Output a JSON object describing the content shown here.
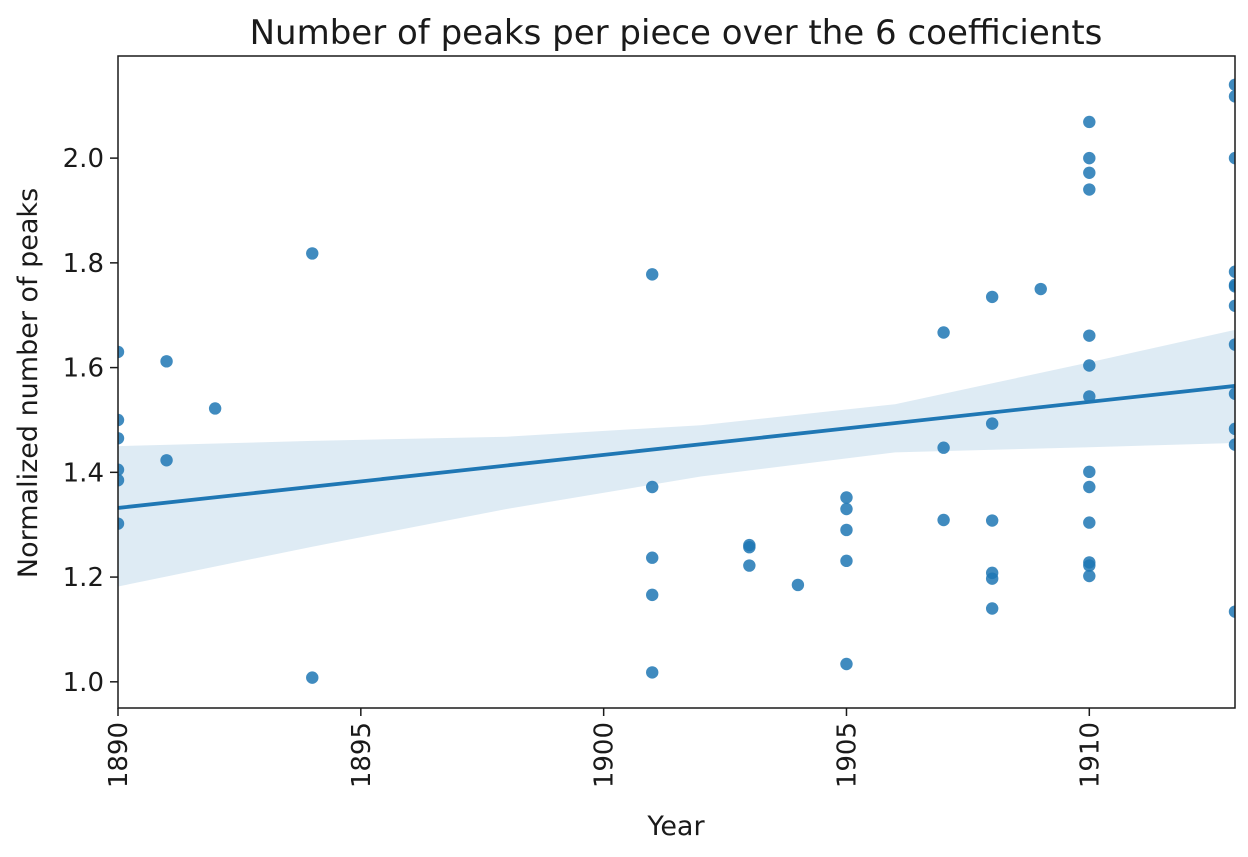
{
  "chart_data": {
    "type": "scatter",
    "title": "Number of peaks per piece over the 6 coefficients",
    "xlabel": "Year",
    "ylabel": "Normalized number of peaks",
    "xlim": [
      1890,
      1913
    ],
    "ylim": [
      0.95,
      2.195
    ],
    "x_ticks": [
      "1890",
      "1895",
      "1900",
      "1905",
      "1910"
    ],
    "y_ticks": [
      "1.0",
      "1.2",
      "1.4",
      "1.6",
      "1.8",
      "2.0"
    ],
    "grid": false,
    "colors": {
      "points": "#1f77b4",
      "line": "#1f77b4",
      "band": "#1f77b4"
    },
    "points": [
      {
        "x": 1890,
        "y": 1.63
      },
      {
        "x": 1890,
        "y": 1.5
      },
      {
        "x": 1890,
        "y": 1.465
      },
      {
        "x": 1890,
        "y": 1.405
      },
      {
        "x": 1890,
        "y": 1.385
      },
      {
        "x": 1890,
        "y": 1.302
      },
      {
        "x": 1891,
        "y": 1.612
      },
      {
        "x": 1891,
        "y": 1.423
      },
      {
        "x": 1892,
        "y": 1.522
      },
      {
        "x": 1894,
        "y": 1.818
      },
      {
        "x": 1894,
        "y": 1.008
      },
      {
        "x": 1901,
        "y": 1.778
      },
      {
        "x": 1901,
        "y": 1.372
      },
      {
        "x": 1901,
        "y": 1.237
      },
      {
        "x": 1901,
        "y": 1.166
      },
      {
        "x": 1901,
        "y": 1.018
      },
      {
        "x": 1903,
        "y": 1.261
      },
      {
        "x": 1903,
        "y": 1.257
      },
      {
        "x": 1903,
        "y": 1.222
      },
      {
        "x": 1904,
        "y": 1.185
      },
      {
        "x": 1905,
        "y": 1.352
      },
      {
        "x": 1905,
        "y": 1.33
      },
      {
        "x": 1905,
        "y": 1.29
      },
      {
        "x": 1905,
        "y": 1.231
      },
      {
        "x": 1905,
        "y": 1.034
      },
      {
        "x": 1907,
        "y": 1.667
      },
      {
        "x": 1907,
        "y": 1.447
      },
      {
        "x": 1907,
        "y": 1.309
      },
      {
        "x": 1908,
        "y": 1.735
      },
      {
        "x": 1908,
        "y": 1.493
      },
      {
        "x": 1908,
        "y": 1.308
      },
      {
        "x": 1908,
        "y": 1.208
      },
      {
        "x": 1908,
        "y": 1.197
      },
      {
        "x": 1908,
        "y": 1.14
      },
      {
        "x": 1909,
        "y": 1.75
      },
      {
        "x": 1910,
        "y": 2.069
      },
      {
        "x": 1910,
        "y": 2.0
      },
      {
        "x": 1910,
        "y": 1.972
      },
      {
        "x": 1910,
        "y": 1.94
      },
      {
        "x": 1910,
        "y": 1.661
      },
      {
        "x": 1910,
        "y": 1.604
      },
      {
        "x": 1910,
        "y": 1.545
      },
      {
        "x": 1910,
        "y": 1.401
      },
      {
        "x": 1910,
        "y": 1.372
      },
      {
        "x": 1910,
        "y": 1.304
      },
      {
        "x": 1910,
        "y": 1.228
      },
      {
        "x": 1910,
        "y": 1.222
      },
      {
        "x": 1910,
        "y": 1.202
      },
      {
        "x": 1913,
        "y": 2.14
      },
      {
        "x": 1913,
        "y": 2.118
      },
      {
        "x": 1913,
        "y": 2.0
      },
      {
        "x": 1913,
        "y": 1.783
      },
      {
        "x": 1913,
        "y": 1.758
      },
      {
        "x": 1913,
        "y": 1.755
      },
      {
        "x": 1913,
        "y": 1.718
      },
      {
        "x": 1913,
        "y": 1.644
      },
      {
        "x": 1913,
        "y": 1.55
      },
      {
        "x": 1913,
        "y": 1.483
      },
      {
        "x": 1913,
        "y": 1.453
      },
      {
        "x": 1913,
        "y": 1.134
      }
    ],
    "regression_line": {
      "x": [
        1890,
        1913
      ],
      "y": [
        1.332,
        1.565
      ]
    },
    "confidence_band": {
      "x": [
        1890,
        1894,
        1898,
        1902,
        1906,
        1910,
        1913
      ],
      "lower": [
        1.182,
        1.258,
        1.33,
        1.392,
        1.438,
        1.448,
        1.456
      ],
      "upper": [
        1.45,
        1.46,
        1.468,
        1.49,
        1.53,
        1.61,
        1.672
      ]
    }
  }
}
